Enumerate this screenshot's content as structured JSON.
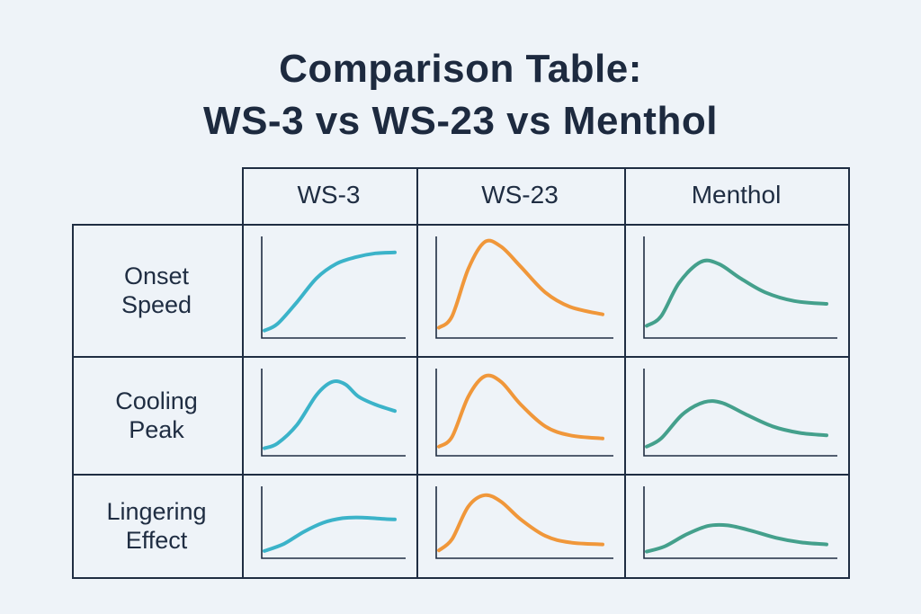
{
  "title": {
    "line1": "Comparison Table:",
    "line2": "WS-3 vs WS-23 vs Menthol"
  },
  "columns": [
    "WS-3",
    "WS-23",
    "Menthol"
  ],
  "rows": [
    {
      "label_line1": "Onset",
      "label_line2": "Speed"
    },
    {
      "label_line1": "Cooling",
      "label_line2": "Peak"
    },
    {
      "label_line1": "Lingering",
      "label_line2": "Effect"
    }
  ],
  "colors": {
    "WS-3": "#3bb3c9",
    "WS-23": "#f0973a",
    "Menthol": "#44a08c",
    "axis": "#1f2d42",
    "border": "#1f2d42",
    "background": "#eef3f8"
  },
  "chart_data": {
    "type": "line",
    "note_units": "relative intensity (0 = baseline, 1 = max) over relative time",
    "cells": [
      {
        "row": "Onset Speed",
        "column": "WS-3",
        "x": [
          0,
          0.1,
          0.25,
          0.4,
          0.55,
          0.7,
          0.85,
          1.0
        ],
        "y": [
          0.05,
          0.12,
          0.35,
          0.6,
          0.75,
          0.82,
          0.86,
          0.87
        ]
      },
      {
        "row": "Onset Speed",
        "column": "WS-23",
        "x": [
          0,
          0.08,
          0.18,
          0.28,
          0.38,
          0.5,
          0.65,
          0.8,
          1.0
        ],
        "y": [
          0.08,
          0.2,
          0.7,
          0.98,
          0.93,
          0.72,
          0.45,
          0.3,
          0.22
        ]
      },
      {
        "row": "Onset Speed",
        "column": "Menthol",
        "x": [
          0,
          0.08,
          0.18,
          0.3,
          0.4,
          0.52,
          0.66,
          0.82,
          1.0
        ],
        "y": [
          0.1,
          0.2,
          0.55,
          0.77,
          0.75,
          0.6,
          0.45,
          0.36,
          0.33
        ]
      },
      {
        "row": "Cooling Peak",
        "column": "WS-3",
        "x": [
          0,
          0.1,
          0.25,
          0.4,
          0.52,
          0.62,
          0.72,
          0.85,
          1.0
        ],
        "y": [
          0.06,
          0.12,
          0.35,
          0.72,
          0.88,
          0.85,
          0.7,
          0.6,
          0.52
        ]
      },
      {
        "row": "Cooling Peak",
        "column": "WS-23",
        "x": [
          0,
          0.08,
          0.18,
          0.28,
          0.38,
          0.5,
          0.65,
          0.8,
          1.0
        ],
        "y": [
          0.08,
          0.2,
          0.7,
          0.95,
          0.88,
          0.6,
          0.33,
          0.22,
          0.18
        ]
      },
      {
        "row": "Cooling Peak",
        "column": "Menthol",
        "x": [
          0,
          0.08,
          0.2,
          0.32,
          0.42,
          0.55,
          0.7,
          0.85,
          1.0
        ],
        "y": [
          0.08,
          0.18,
          0.48,
          0.63,
          0.62,
          0.48,
          0.33,
          0.25,
          0.22
        ]
      },
      {
        "row": "Lingering Effect",
        "column": "WS-3",
        "x": [
          0,
          0.15,
          0.3,
          0.45,
          0.6,
          0.75,
          0.9,
          1.0
        ],
        "y": [
          0.07,
          0.18,
          0.36,
          0.5,
          0.57,
          0.58,
          0.56,
          0.55
        ]
      },
      {
        "row": "Lingering Effect",
        "column": "WS-23",
        "x": [
          0,
          0.08,
          0.18,
          0.28,
          0.38,
          0.5,
          0.65,
          0.8,
          1.0
        ],
        "y": [
          0.08,
          0.25,
          0.75,
          0.92,
          0.82,
          0.55,
          0.3,
          0.2,
          0.17
        ]
      },
      {
        "row": "Lingering Effect",
        "column": "Menthol",
        "x": [
          0,
          0.1,
          0.22,
          0.34,
          0.45,
          0.58,
          0.72,
          0.86,
          1.0
        ],
        "y": [
          0.06,
          0.14,
          0.32,
          0.45,
          0.46,
          0.38,
          0.27,
          0.2,
          0.17
        ]
      }
    ]
  }
}
